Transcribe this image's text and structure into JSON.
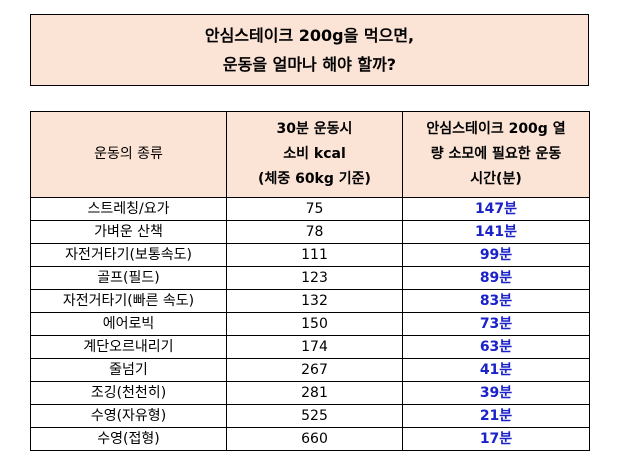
{
  "title": {
    "line1": "안심스테이크 200g을 먹으면,",
    "line2": "운동을 얼마나 해야 할까?"
  },
  "table": {
    "headers": {
      "exercise": "운동의 종류",
      "kcal": [
        "30분 운동시",
        "소비 kcal",
        "(체중 60kg 기준)"
      ],
      "minutes": [
        "안심스테이크 200g 열",
        "량 소모에 필요한 운동",
        "시간(분)"
      ]
    },
    "rows": [
      {
        "exercise": "스트레칭/요가",
        "kcal": "75",
        "minutes": "147분"
      },
      {
        "exercise": "가벼운 산책",
        "kcal": "78",
        "minutes": "141분"
      },
      {
        "exercise": "자전거타기(보통속도)",
        "kcal": "111",
        "minutes": "99분"
      },
      {
        "exercise": "골프(필드)",
        "kcal": "123",
        "minutes": "89분"
      },
      {
        "exercise": "자전거타기(빠른 속도)",
        "kcal": "132",
        "minutes": "83분"
      },
      {
        "exercise": "에어로빅",
        "kcal": "150",
        "minutes": "73분"
      },
      {
        "exercise": "계단오르내리기",
        "kcal": "174",
        "minutes": "63분"
      },
      {
        "exercise": "줄넘기",
        "kcal": "267",
        "minutes": "41분"
      },
      {
        "exercise": "조깅(천천히)",
        "kcal": "281",
        "minutes": "39분"
      },
      {
        "exercise": "수영(자유형)",
        "kcal": "525",
        "minutes": "21분"
      },
      {
        "exercise": "수영(접형)",
        "kcal": "660",
        "minutes": "17분"
      }
    ]
  },
  "colors": {
    "header_bg": "#fbe3d6",
    "minutes_text": "#1a22c8"
  }
}
